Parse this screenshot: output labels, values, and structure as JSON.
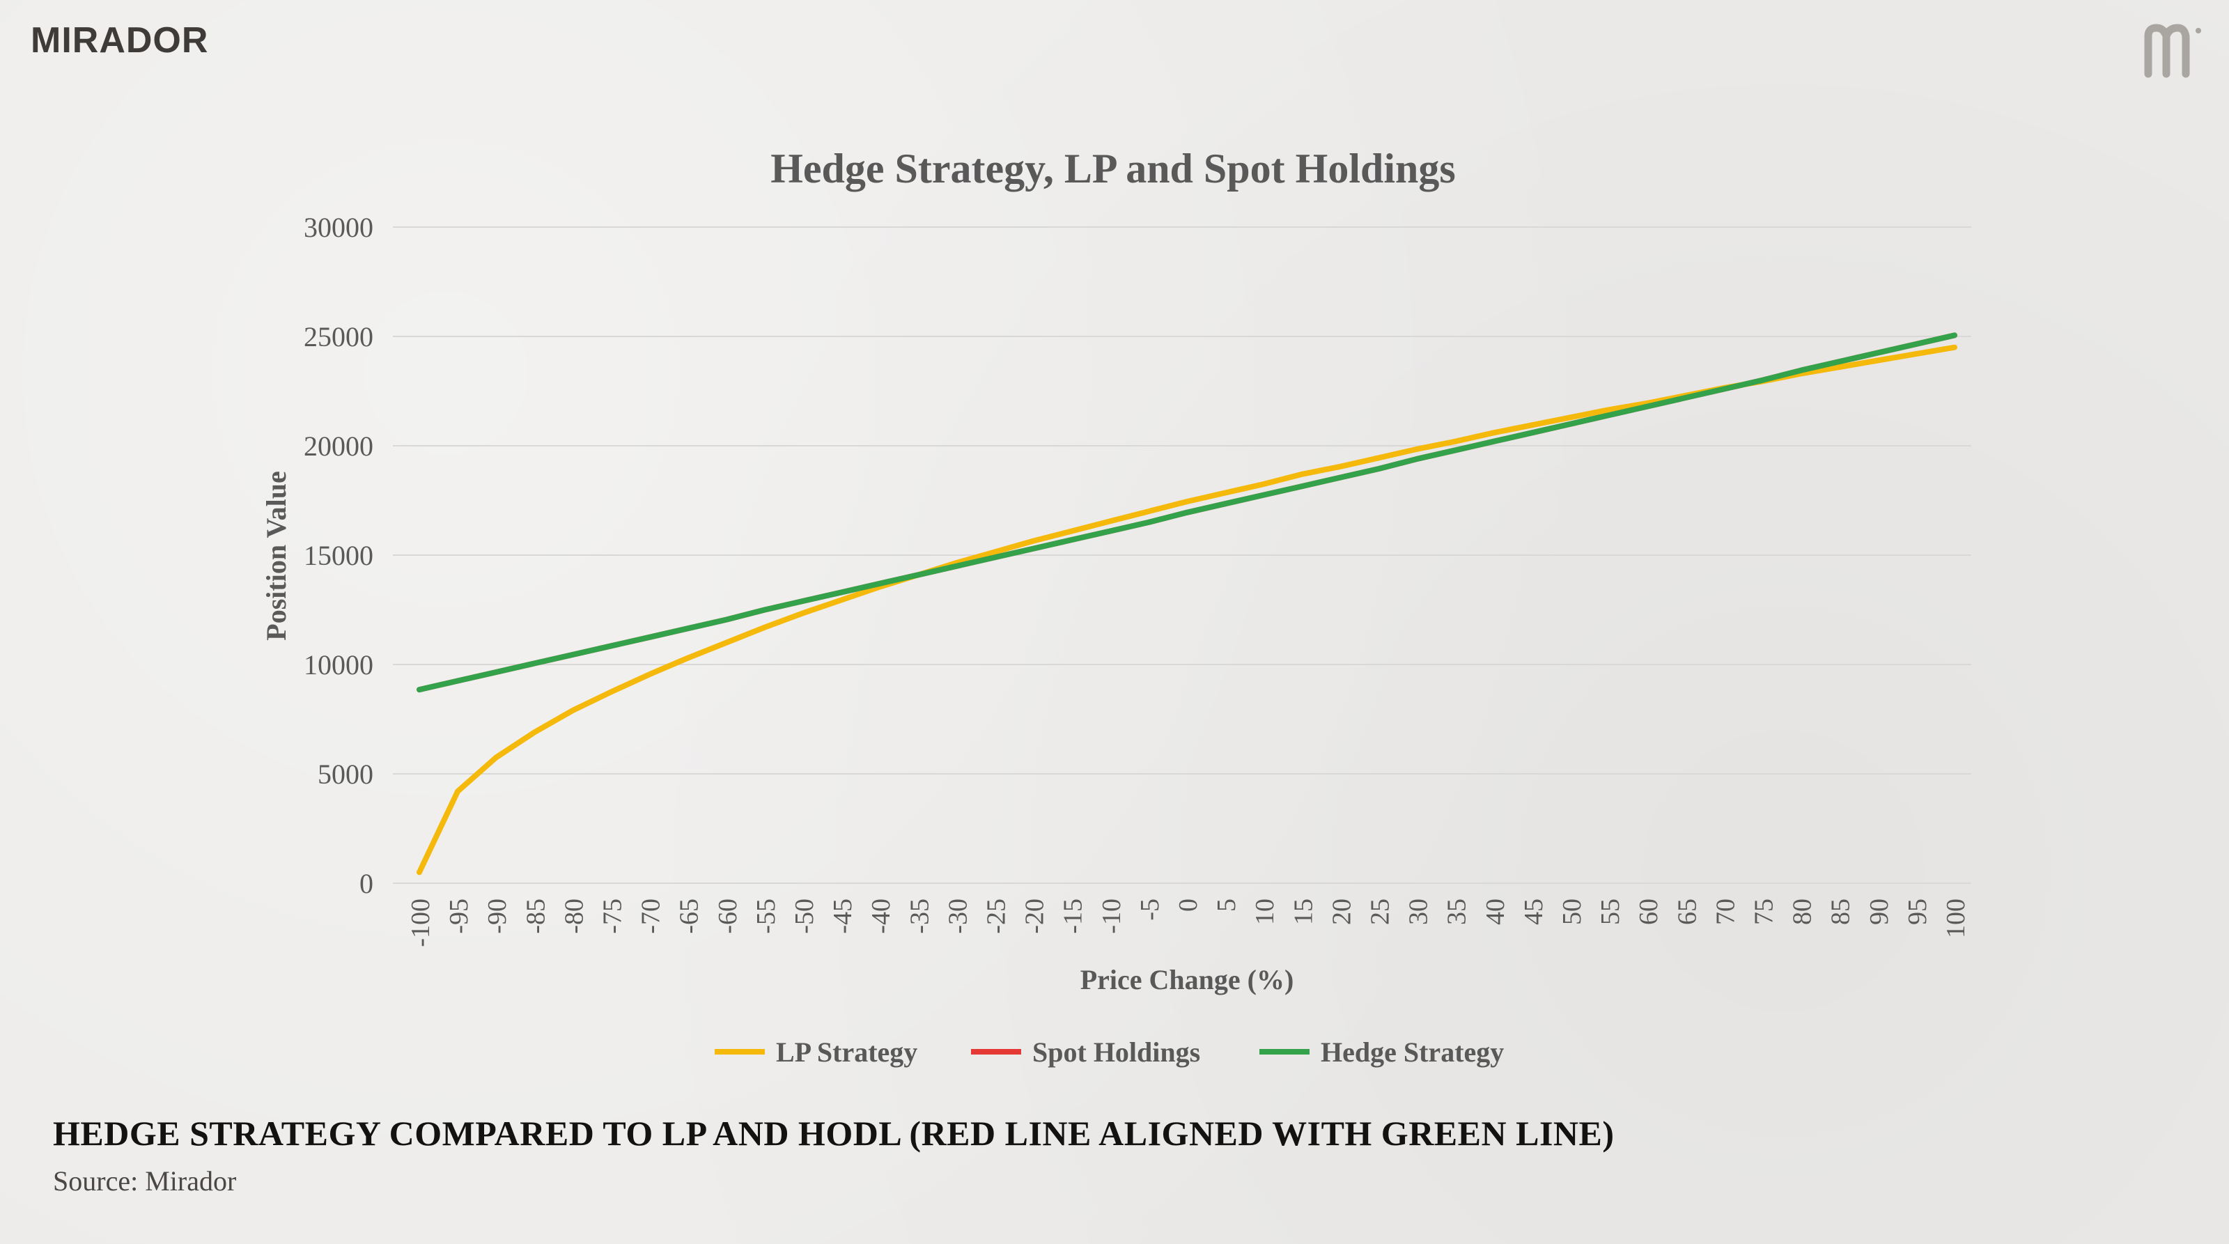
{
  "brand": {
    "name": "MIRADOR"
  },
  "caption": "HEDGE STRATEGY COMPARED TO LP AND HODL (RED LINE ALIGNED WITH GREEN LINE)",
  "source": "Source: Mirador",
  "chart_data": {
    "type": "line",
    "title": "Hedge Strategy, LP and Spot Holdings",
    "xlabel": "Price Change (%)",
    "ylabel": "Position Value",
    "ylim": [
      0,
      30000
    ],
    "yticks": [
      0,
      5000,
      10000,
      15000,
      20000,
      25000,
      30000
    ],
    "grid": true,
    "legend_position": "bottom",
    "categories": [
      -100,
      -95,
      -90,
      -85,
      -80,
      -75,
      -70,
      -65,
      -60,
      -55,
      -50,
      -45,
      -40,
      -35,
      -30,
      -25,
      -20,
      -15,
      -10,
      -5,
      0,
      5,
      10,
      15,
      20,
      25,
      30,
      35,
      40,
      45,
      50,
      55,
      60,
      65,
      70,
      75,
      80,
      85,
      90,
      95,
      100
    ],
    "series": [
      {
        "name": "LP Strategy",
        "color": "#f5b90c",
        "values": [
          500,
          4200,
          5750,
          6900,
          7900,
          8750,
          9550,
          10300,
          11000,
          11700,
          12350,
          12950,
          13550,
          14100,
          14650,
          15150,
          15650,
          16100,
          16550,
          17000,
          17450,
          17850,
          18250,
          18700,
          19050,
          19450,
          19850,
          20200,
          20600,
          20950,
          21300,
          21650,
          21950,
          22300,
          22650,
          22950,
          23300,
          23600,
          23900,
          24200,
          24500
        ]
      },
      {
        "name": "Spot Holdings",
        "color": "#e53935",
        "values": [
          8850,
          9250,
          9650,
          10050,
          10450,
          10850,
          11250,
          11650,
          12050,
          12500,
          12900,
          13300,
          13700,
          14100,
          14500,
          14900,
          15300,
          15700,
          16100,
          16500,
          16950,
          17350,
          17750,
          18150,
          18550,
          18950,
          19400,
          19800,
          20200,
          20600,
          21000,
          21400,
          21800,
          22200,
          22600,
          23000,
          23450,
          23850,
          24250,
          24650,
          25050
        ]
      },
      {
        "name": "Hedge Strategy",
        "color": "#34a24a",
        "values": [
          8850,
          9250,
          9650,
          10050,
          10450,
          10850,
          11250,
          11650,
          12050,
          12500,
          12900,
          13300,
          13700,
          14100,
          14500,
          14900,
          15300,
          15700,
          16100,
          16500,
          16950,
          17350,
          17750,
          18150,
          18550,
          18950,
          19400,
          19800,
          20200,
          20600,
          21000,
          21400,
          21800,
          22200,
          22600,
          23000,
          23450,
          23850,
          24250,
          24650,
          25050
        ]
      }
    ]
  }
}
